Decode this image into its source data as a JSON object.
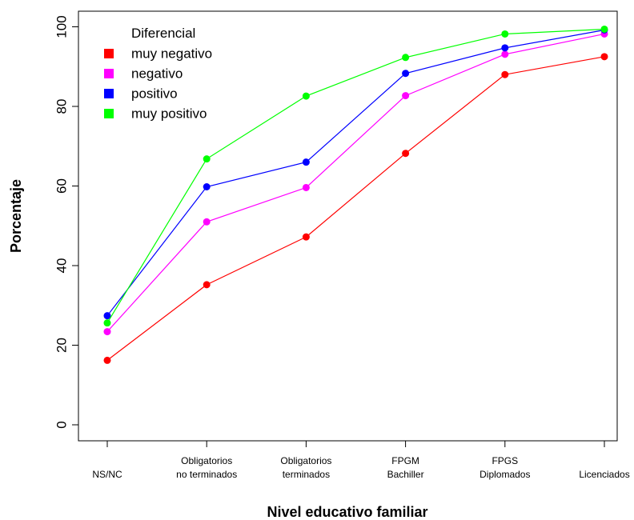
{
  "chart_data": {
    "type": "line",
    "xlabel": "Nivel educativo familiar",
    "ylabel": "Porcentaje",
    "categories": [
      [
        "NS/NC"
      ],
      [
        "Obligatorios",
        "no terminados"
      ],
      [
        "Obligatorios",
        "terminados"
      ],
      [
        "FPGM",
        "Bachiller"
      ],
      [
        "FPGS",
        "Diplomados"
      ],
      [
        "Licenciados"
      ]
    ],
    "yticks": [
      "0",
      "20",
      "40",
      "60",
      "80",
      "100"
    ],
    "ylim": [
      -6,
      102
    ],
    "grid": false,
    "legend": {
      "title": "Diferencial",
      "position": "top-left"
    },
    "series": [
      {
        "name": "muy negativo",
        "color": "#ff0000",
        "values": [
          16.2,
          35.2,
          47.2,
          68.2,
          88.0,
          92.5
        ]
      },
      {
        "name": "negativo",
        "color": "#ff00ff",
        "values": [
          23.4,
          51.0,
          59.6,
          82.7,
          93.1,
          98.2
        ]
      },
      {
        "name": "positivo",
        "color": "#0000ff",
        "values": [
          27.4,
          59.8,
          66.0,
          88.3,
          94.7,
          99.2
        ]
      },
      {
        "name": "muy positivo",
        "color": "#00ff00",
        "values": [
          25.6,
          66.8,
          82.6,
          92.3,
          98.2,
          99.4
        ]
      }
    ]
  }
}
